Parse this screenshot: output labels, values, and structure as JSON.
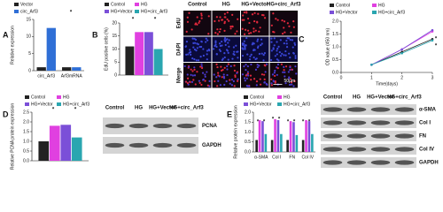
{
  "chart_data": [
    {
      "type": "bar",
      "panel_label": "A",
      "ylabel": "Relative expression",
      "categories": [
        "circ_Arf3",
        "Arf3mRNA"
      ],
      "series": [
        {
          "name": "Vector",
          "color": "#222222",
          "values": [
            1,
            1
          ]
        },
        {
          "name": "circ_Arf3",
          "color": "#2f6fd6",
          "values": [
            12.5,
            1
          ]
        }
      ],
      "ylim": [
        0,
        15
      ],
      "yticks": [
        0,
        5,
        10,
        15
      ],
      "annotations": [
        "*"
      ]
    },
    {
      "type": "bar",
      "panel_label": "B",
      "ylabel": "EdU positive cells (%)",
      "categories": [
        null
      ],
      "series": [
        {
          "name": "Control",
          "color": "#222222",
          "values": [
            11
          ]
        },
        {
          "name": "HG",
          "color": "#e040e0",
          "values": [
            16.5
          ]
        },
        {
          "name": "HG+Vector",
          "color": "#7b4fd8",
          "values": [
            16.5
          ]
        },
        {
          "name": "HG+circ_Arf3",
          "color": "#2aa6b0",
          "values": [
            10
          ]
        }
      ],
      "ylim": [
        0,
        20
      ],
      "yticks": [
        0,
        5,
        10,
        15,
        20
      ],
      "annotations": [
        "*",
        "*"
      ]
    },
    {
      "type": "line",
      "panel_label": "C",
      "ylabel": "OD value (450 nm)",
      "xlabel": "Time(days)",
      "x": [
        1,
        2,
        3
      ],
      "series": [
        {
          "name": "Control",
          "color": "#222222",
          "values": [
            0.3,
            0.8,
            1.3
          ]
        },
        {
          "name": "HG",
          "color": "#e040e0",
          "values": [
            0.3,
            0.9,
            1.6
          ]
        },
        {
          "name": "HG+Vector",
          "color": "#7b4fd8",
          "values": [
            0.3,
            0.9,
            1.65
          ]
        },
        {
          "name": "HG+circ_Arf3",
          "color": "#2aa6b0",
          "values": [
            0.3,
            0.75,
            1.25
          ]
        }
      ],
      "xlim": [
        0,
        3
      ],
      "xticks": [
        0,
        1,
        2,
        3
      ],
      "ylim": [
        0,
        2
      ],
      "yticks": [
        {
          "value": 0,
          "label": "0.0"
        },
        0.5,
        {
          "value": 1,
          "label": "1.0"
        },
        1.5,
        {
          "value": 2,
          "label": "2.0"
        }
      ],
      "annotations": [
        "*",
        "*"
      ]
    },
    {
      "type": "bar",
      "panel_label": "D",
      "ylabel": "Relative PCNA protein expression",
      "categories": [
        null
      ],
      "series": [
        {
          "name": "Control",
          "color": "#222222",
          "values": [
            1.0
          ]
        },
        {
          "name": "HG",
          "color": "#e040e0",
          "values": [
            1.8
          ]
        },
        {
          "name": "HG+Vector",
          "color": "#7b4fd8",
          "values": [
            1.85
          ]
        },
        {
          "name": "HG+circ_Arf3",
          "color": "#2aa6b0",
          "values": [
            1.2
          ]
        }
      ],
      "ylim": [
        0,
        2.5
      ],
      "yticks": [
        {
          "value": 0,
          "label": "0.0"
        },
        0.5,
        {
          "value": 1,
          "label": "1.0"
        },
        1.5,
        {
          "value": 2,
          "label": "2.0"
        },
        2.5
      ],
      "annotations": [
        "*",
        "*"
      ]
    },
    {
      "type": "bar",
      "panel_label": "E",
      "ylabel": "Relative protein expression",
      "categories": [
        "α-SMA",
        "Col I",
        "FN",
        "Col IV"
      ],
      "series": [
        {
          "name": "Control",
          "color": "#222222",
          "values": [
            0.6,
            0.6,
            0.6,
            0.6
          ]
        },
        {
          "name": "HG",
          "color": "#e040e0",
          "values": [
            1.6,
            1.65,
            1.55,
            1.6
          ]
        },
        {
          "name": "HG+Vector",
          "color": "#7b4fd8",
          "values": [
            1.55,
            1.6,
            1.5,
            1.55
          ]
        },
        {
          "name": "HG+circ_Arf3",
          "color": "#2aa6b0",
          "values": [
            0.9,
            0.9,
            0.85,
            0.9
          ]
        }
      ],
      "ylim": [
        0,
        2
      ],
      "yticks": [
        {
          "value": 0,
          "label": "0.0"
        },
        0.5,
        {
          "value": 1,
          "label": "1.0"
        },
        1.5,
        {
          "value": 2,
          "label": "2.0"
        }
      ],
      "annotations": [
        "*",
        "*",
        "*",
        "*",
        "*",
        "*",
        "*",
        "*"
      ]
    }
  ],
  "micrographs": {
    "columns": [
      "Control",
      "HG",
      "HG+Vector",
      "HG+circ_Arf3"
    ],
    "rows": [
      "EdU",
      "DAPI",
      "Merge"
    ],
    "scale_bar": "50μm"
  },
  "blots": [
    {
      "columns": [
        "Control",
        "HG",
        "HG+Vector",
        "HG+circ_Arf3"
      ],
      "rows": [
        "PCNA",
        "GAPDH"
      ]
    },
    {
      "columns": [
        "Control",
        "HG",
        "HG+Vector",
        "HG+circ_Arf3"
      ],
      "rows": [
        "α-SMA",
        "Col I",
        "FN",
        "Col IV",
        "GAPDH"
      ]
    }
  ]
}
